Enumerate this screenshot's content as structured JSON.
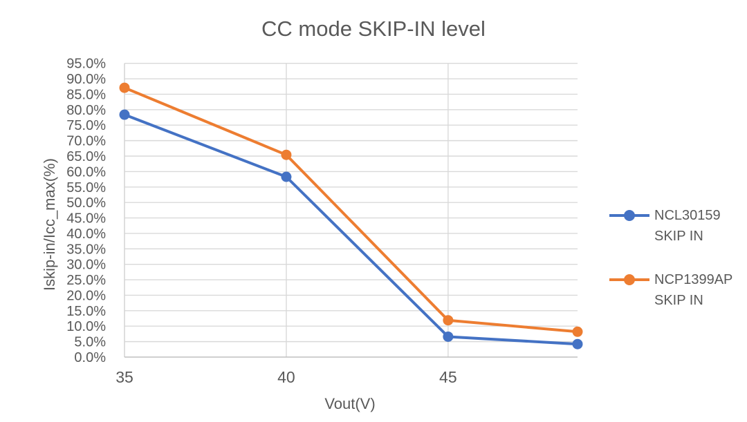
{
  "title": "CC mode SKIP-IN level",
  "chart_data": {
    "type": "line",
    "title": "CC mode SKIP-IN level",
    "xlabel": "Vout(V)",
    "ylabel": "Iskip-in/Icc_max(%)",
    "x": [
      35,
      40,
      45,
      49
    ],
    "series": [
      {
        "name": "NCL30159 SKIP IN",
        "color": "#4472C4",
        "values": [
          78.4,
          58.3,
          6.6,
          4.2
        ]
      },
      {
        "name": "NCP1399AP SKIP IN",
        "color": "#ED7D31",
        "values": [
          87.1,
          65.4,
          11.9,
          8.2
        ]
      }
    ],
    "xlim": [
      35,
      49
    ],
    "ylim": [
      0,
      95
    ],
    "x_ticks": [
      35,
      40,
      45
    ],
    "x_tick_labels": [
      "35",
      "40",
      "45"
    ],
    "y_ticks": [
      0,
      5,
      10,
      15,
      20,
      25,
      30,
      35,
      40,
      45,
      50,
      55,
      60,
      65,
      70,
      75,
      80,
      85,
      90,
      95
    ],
    "y_tick_labels": [
      "0.0%",
      "5.0%",
      "10.0%",
      "15.0%",
      "20.0%",
      "25.0%",
      "30.0%",
      "35.0%",
      "40.0%",
      "45.0%",
      "50.0%",
      "55.0%",
      "60.0%",
      "65.0%",
      "70.0%",
      "75.0%",
      "80.0%",
      "85.0%",
      "90.0%",
      "95.0%"
    ],
    "grid": true,
    "legend_position": "right",
    "colors": {
      "gridline": "#D9D9D9",
      "axis_line_bottom": "#BFBFBF",
      "axis_line_left": "#D6D6D6",
      "text": "#595959",
      "background": "#FFFFFF"
    }
  }
}
